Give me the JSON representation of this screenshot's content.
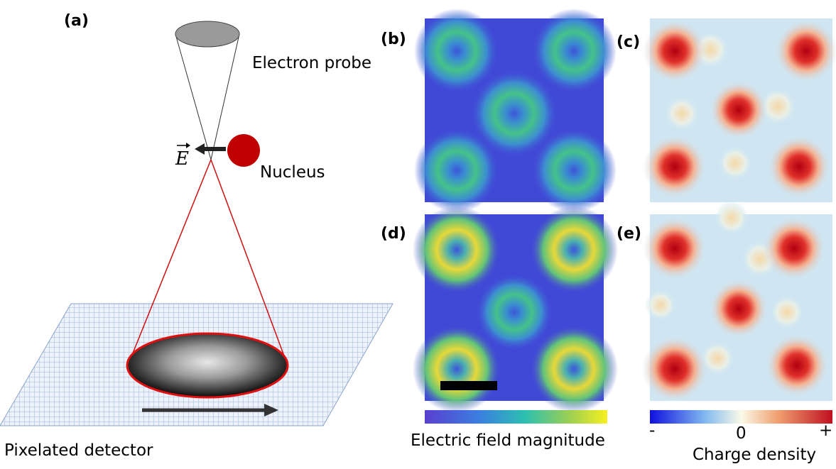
{
  "panels": {
    "a": "(a)",
    "b": "(b)",
    "c": "(c)",
    "d": "(d)",
    "e": "(e)"
  },
  "labels": {
    "probe": "Electron probe",
    "field": "E",
    "nucleus": "Nucleus",
    "detector": "Pixelated detector"
  },
  "colorbars": {
    "field": {
      "title": "Electric field magnitude"
    },
    "charge": {
      "title": "Charge density",
      "min": "-",
      "mid": "0",
      "max": "+"
    }
  }
}
